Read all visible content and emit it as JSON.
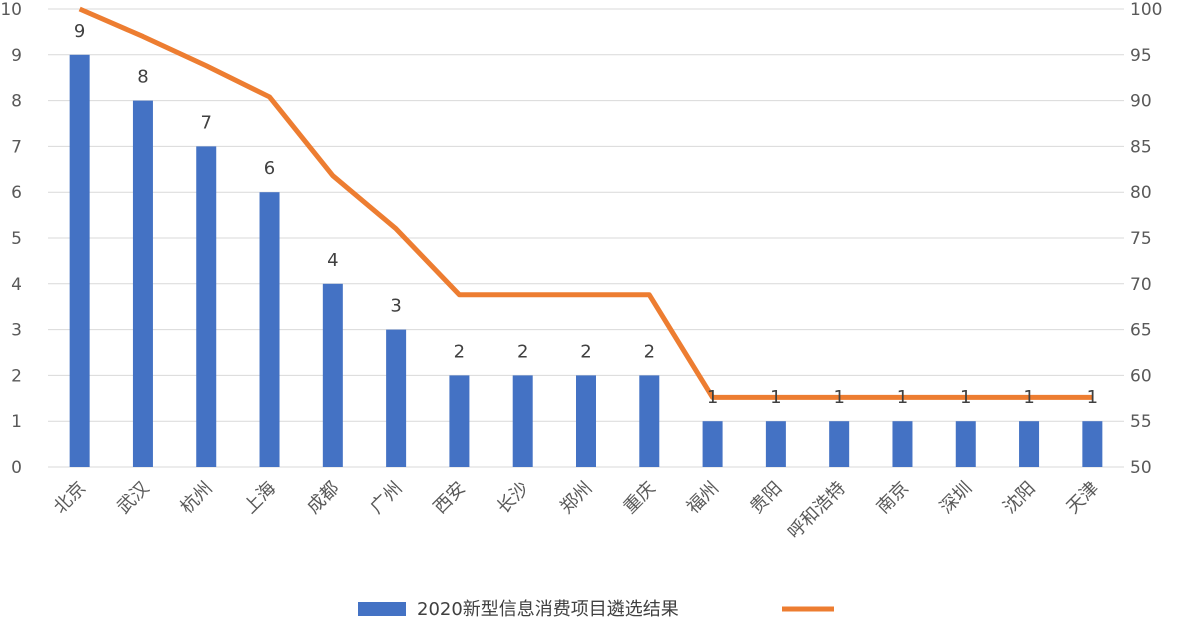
{
  "chart_data": {
    "type": "bar",
    "categories": [
      "北京",
      "武汉",
      "杭州",
      "上海",
      "成都",
      "广州",
      "西安",
      "长沙",
      "郑州",
      "重庆",
      "福州",
      "贵阳",
      "呼和浩特",
      "南京",
      "深圳",
      "沈阳",
      "天津"
    ],
    "series": [
      {
        "name": "2020新型信息消费项目遴选结果",
        "type": "bar",
        "axis": "left",
        "color": "#4472C4",
        "values": [
          9,
          8,
          7,
          6,
          4,
          3,
          2,
          2,
          2,
          2,
          1,
          1,
          1,
          1,
          1,
          1,
          1
        ]
      },
      {
        "name": "",
        "type": "line",
        "axis": "right",
        "color": "#ED7D31",
        "values": [
          100,
          97,
          93.8,
          90.4,
          81.8,
          76,
          68.8,
          68.8,
          68.8,
          68.8,
          57.6,
          57.6,
          57.6,
          57.6,
          57.6,
          57.6,
          57.6
        ]
      }
    ],
    "data_labels": [
      "9",
      "8",
      "7",
      "6",
      "4",
      "3",
      "2",
      "2",
      "2",
      "2",
      "1",
      "1",
      "1",
      "1",
      "1",
      "1",
      "1"
    ],
    "y_left": {
      "min": 0,
      "max": 10,
      "ticks": [
        "0",
        "1",
        "2",
        "3",
        "4",
        "5",
        "6",
        "7",
        "8",
        "9",
        "10"
      ]
    },
    "y_right": {
      "min": 50,
      "max": 100,
      "ticks": [
        "50",
        "55",
        "60",
        "65",
        "70",
        "75",
        "80",
        "85",
        "90",
        "95",
        "100"
      ]
    },
    "grid": true,
    "legend": {
      "placement": "bottom",
      "items": [
        {
          "label": "2020新型信息消费项目遴选结果",
          "symbol": "bar",
          "color": "#4472C4"
        },
        {
          "label": "",
          "symbol": "line",
          "color": "#ED7D31"
        }
      ]
    },
    "gridColor": "#D9D9D9"
  }
}
